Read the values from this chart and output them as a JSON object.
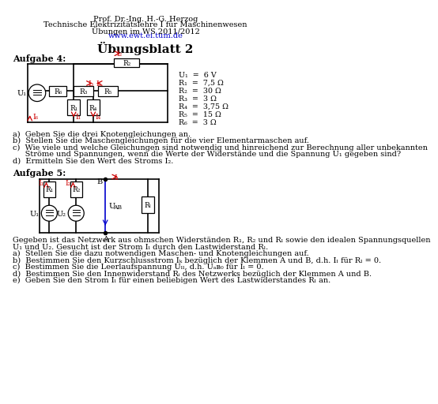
{
  "header_line1": "Prof. Dr.-Ing. H.-G. Herzog",
  "header_line2": "Technische Elektrizitätslehre I für Maschinenwesen",
  "header_line3": "Übungen im WS 2011/2012",
  "header_link": "www.ewt.ei.tum.de",
  "title": "Übungsblatt 2",
  "section1": "Aufgabe 4:",
  "section2": "Aufgabe 5:",
  "params": [
    "U₁  =  6 V",
    "R₁  =  7,5 Ω",
    "R₂  =  30 Ω",
    "R₃  =  3 Ω",
    "R₄  =  3,75 Ω",
    "R₅  =  15 Ω",
    "R₆  =  3 Ω"
  ],
  "q4_questions": [
    "a)  Geben Sie die drei Knotengleichungen an.",
    "b)  Stellen Sie die Maschengleichungen für die vier Elementarmaschen auf.",
    "c)  Wie viele und welche Gleichungen sind notwendig und hinreichend zur Berechnung aller unbekannten",
    "     Ströme und Spannungen, wenn die Werte der Widerstände und die Spannung U₁ gegeben sind?",
    "d)  Ermitteln Sie den Wert des Stroms I₂."
  ],
  "q5_intro": [
    "Gegeben ist das Netzwerk aus ohmschen Widerständen R₁, R₂ und Rₗ sowie den idealen Spannungsquellen",
    "U₁ und U₂. Gesucht ist der Strom Iₗ durch den Lastwiderstand Rₗ.",
    "a)  Stellen Sie die dazu notwendigen Maschen- und Knotengleichungen auf.",
    "b)  Bestimmen Sie den Kurzschlussstrom Iₖ bezüglich der Klemmen A und B, d.h. Iₗ für Rₗ = 0.",
    "c)  Bestimmen Sie die Leerlaufspannung Uₗₗ, d.h. Uₐʙ₀ für Iₗ = 0.",
    "d)  Bestimmen Sie den Innenwiderstand Rᵢ des Netzwerks bezüglich der Klemmen A und B.",
    "e)  Geben Sie den Strom Iₗ für einen beliebigen Wert des Lastwiderstandes Rₗ an."
  ],
  "bg_color": "#ffffff",
  "text_color": "#000000",
  "link_color": "#0000cd",
  "arrow_color": "#cc0000",
  "blue_color": "#0000cd"
}
